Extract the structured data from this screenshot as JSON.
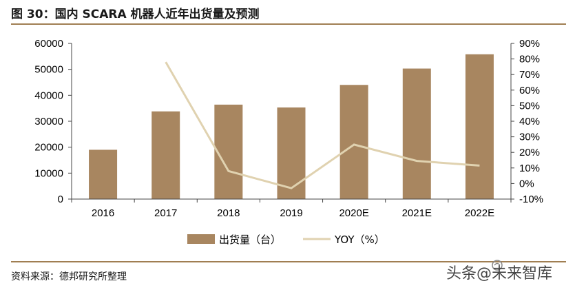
{
  "header": {
    "title": "图 30：国内 SCARA 机器人近年出货量及预测"
  },
  "footer": {
    "source": "资料来源：德邦研究所整理",
    "watermark": "头条@未来智库"
  },
  "colors": {
    "bar": "#A88660",
    "line": "#E0D2B0",
    "rule": "#A07E52",
    "axis": "#444444"
  },
  "chart_data": {
    "type": "bar",
    "categories": [
      "2016",
      "2017",
      "2018",
      "2019",
      "2020E",
      "2021E",
      "2022E"
    ],
    "series": [
      {
        "name": "出货量（台）",
        "type": "bar",
        "axis": "left",
        "values": [
          19000,
          33800,
          36400,
          35300,
          44000,
          50300,
          55800
        ]
      },
      {
        "name": "YOY（%）",
        "type": "line",
        "axis": "right",
        "values": [
          null,
          78,
          8,
          -3,
          25,
          14.5,
          11.5
        ]
      }
    ],
    "y_left": {
      "min": 0,
      "max": 60000,
      "ticks": [
        "0",
        "10000",
        "20000",
        "30000",
        "40000",
        "50000",
        "60000"
      ]
    },
    "y_right": {
      "min": -10,
      "max": 90,
      "ticks": [
        "-10%",
        "0%",
        "10%",
        "20%",
        "30%",
        "40%",
        "50%",
        "60%",
        "70%",
        "80%",
        "90%"
      ]
    },
    "grid": false,
    "legend": "bottom-center"
  }
}
